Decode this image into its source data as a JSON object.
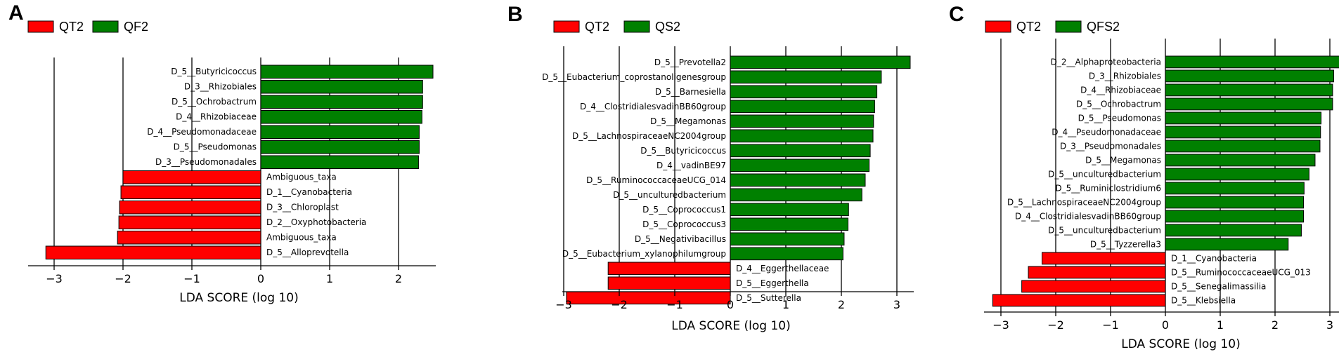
{
  "colors": {
    "neg": "#ff0000",
    "pos": "#008000"
  },
  "chart_data": [
    {
      "type": "bar",
      "panel": "A",
      "legend": [
        {
          "label": "QT2",
          "color": "#ff0000"
        },
        {
          "label": "QF2",
          "color": "#008000"
        }
      ],
      "xlabel": "LDA SCORE (log 10)",
      "xlim": [
        -3.2,
        2.4
      ],
      "xticks": [
        -3,
        -2,
        -1,
        0,
        1,
        2
      ],
      "xtick_labels": [
        "−3",
        "−2",
        "−1",
        "0",
        "1",
        "2"
      ],
      "categories": [
        "D_5__Butyricicoccus",
        "D_3__Rhizobiales",
        "D_5__Ochrobactrum",
        "D_4__Rhizobiaceae",
        "D_4__Pseudomonadaceae",
        "D_5__Pseudomonas",
        "D_3__Pseudomonadales",
        "Ambiguous_taxa",
        "D_1__Cyanobacteria",
        "D_3__Chloroplast",
        "D_2__Oxyphotobacteria",
        "Ambiguous_taxa",
        "D_5__Alloprevotella"
      ],
      "values": [
        2.5,
        2.35,
        2.35,
        2.34,
        2.3,
        2.3,
        2.29,
        -2.0,
        -2.03,
        -2.05,
        -2.06,
        -2.08,
        -3.12
      ]
    },
    {
      "type": "bar",
      "panel": "B",
      "legend": [
        {
          "label": "QT2",
          "color": "#ff0000"
        },
        {
          "label": "QS2",
          "color": "#008000"
        }
      ],
      "xlabel": "LDA SCORE (log 10)",
      "xlim": [
        -3.1,
        3.3
      ],
      "xticks": [
        -3,
        -2,
        -1,
        0,
        1,
        2,
        3
      ],
      "xtick_labels": [
        "−3",
        "−2",
        "−1",
        "0",
        "1",
        "2",
        "3"
      ],
      "categories": [
        "D_5__Prevotella2",
        "D_5__Eubacterium_coprostanoligenesgroup",
        "D_5__Barnesiella",
        "D_4__ClostridialesvadinBB60group",
        "D_5__Megamonas",
        "D_5__LachnospiraceaeNC2004group",
        "D_5__Butyricicoccus",
        "D_4__vadinBE97",
        "D_5__RuminococcaceaeUCG_014",
        "D_5__unculturedbacterium",
        "D_5__Coprococcus1",
        "D_5__Coprococcus3",
        "D_5__Negativibacillus",
        "D_5__Eubacterium_xylanophilumgroup",
        "D_4__Eggerthellaceae",
        "D_5__Eggerthella",
        "D_5__Sutterella"
      ],
      "values": [
        3.24,
        2.72,
        2.64,
        2.6,
        2.58,
        2.57,
        2.52,
        2.5,
        2.43,
        2.37,
        2.13,
        2.12,
        2.05,
        2.03,
        -2.2,
        -2.2,
        -2.95
      ]
    },
    {
      "type": "bar",
      "panel": "C",
      "legend": [
        {
          "label": "QT2",
          "color": "#ff0000"
        },
        {
          "label": "QFS2",
          "color": "#008000"
        }
      ],
      "xlabel": "LDA SCORE (log 10)",
      "xlim": [
        -3.2,
        3.2
      ],
      "xticks": [
        -3,
        -2,
        -1,
        0,
        1,
        2,
        3
      ],
      "xtick_labels": [
        "−3",
        "−2",
        "−1",
        "0",
        "1",
        "2",
        "3"
      ],
      "categories": [
        "D_2__Alphaproteobacteria",
        "D_3__Rhizobiales",
        "D_4__Rhizobiaceae",
        "D_5__Ochrobactrum",
        "D_5__Pseudomonas",
        "D_4__Pseudomonadaceae",
        "D_3__Pseudomonadales",
        "D_5__Megamonas",
        "D_5__unculturedbacterium",
        "D_5__Ruminiclostridium6",
        "D_5__LachnospiraceaeNC2004group",
        "D_4__ClostridialesvadinBB60group",
        "D_5__unculturedbacterium",
        "D_5__Tyzzerella3",
        "D_1__Cyanobacteria",
        "D_5__RuminococcaceaeUCG_013",
        "D_5__Senegalimassilia",
        "D_5__Klebsiella"
      ],
      "values": [
        3.2,
        3.07,
        3.05,
        3.05,
        2.84,
        2.83,
        2.82,
        2.73,
        2.62,
        2.53,
        2.52,
        2.52,
        2.48,
        2.24,
        -2.25,
        -2.5,
        -2.62,
        -3.15
      ]
    }
  ]
}
